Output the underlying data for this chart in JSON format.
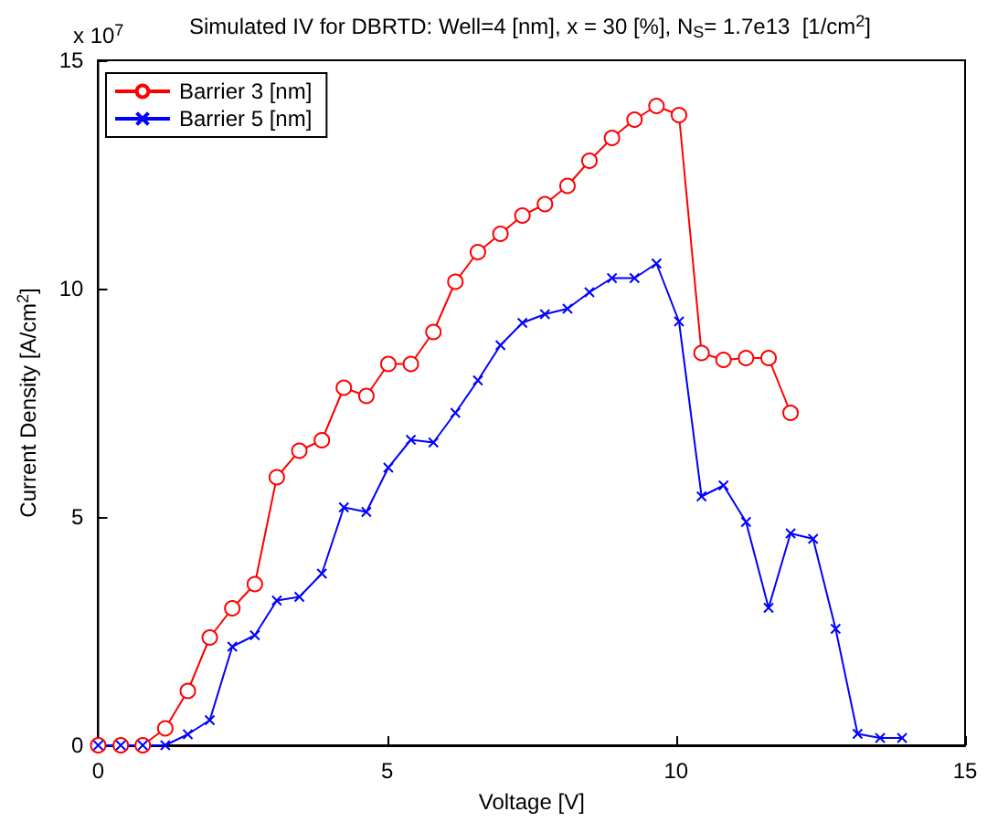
{
  "chart_data": {
    "type": "line",
    "title": "Simulated IV for DBRTD: Well=4 [nm], x = 30 [%], N$_{S}$= 1.7e13  [1/cm$^{2}$]",
    "xlabel": "Voltage [V]",
    "ylabel": "Current Density [A/cm$^{2}$]",
    "annotations": [
      "x 10$^{7}$"
    ],
    "series": [
      {
        "name": "Barrier 3 [nm]",
        "color": "#ff0000",
        "marker": "circle",
        "x": [
          0,
          0.39,
          0.77,
          1.16,
          1.55,
          1.93,
          2.32,
          2.71,
          3.09,
          3.48,
          3.87,
          4.25,
          4.64,
          5.02,
          5.41,
          5.8,
          6.18,
          6.57,
          6.96,
          7.34,
          7.73,
          8.12,
          8.5,
          8.89,
          9.28,
          9.66,
          10.05,
          10.44,
          10.82,
          11.21,
          11.6,
          11.98
        ],
        "values": [
          0,
          0,
          0,
          0.37,
          1.19,
          2.36,
          3.0,
          3.53,
          5.87,
          6.45,
          6.68,
          7.83,
          7.65,
          8.35,
          8.35,
          9.05,
          10.15,
          10.8,
          11.2,
          11.6,
          11.85,
          12.25,
          12.8,
          13.3,
          13.7,
          14.0,
          13.8,
          8.59,
          8.44,
          8.48,
          8.48,
          7.28
        ]
      },
      {
        "name": "Barrier 5 [nm]",
        "color": "#0000ff",
        "marker": "cross",
        "x": [
          0,
          0.39,
          0.77,
          1.16,
          1.55,
          1.93,
          2.32,
          2.71,
          3.09,
          3.48,
          3.87,
          4.25,
          4.64,
          5.02,
          5.41,
          5.8,
          6.18,
          6.57,
          6.96,
          7.34,
          7.73,
          8.12,
          8.5,
          8.89,
          9.28,
          9.66,
          10.05,
          10.44,
          10.82,
          11.21,
          11.6,
          11.98,
          12.37,
          12.76,
          13.14,
          13.53,
          13.91
        ],
        "values": [
          0,
          0,
          0,
          0,
          0.24,
          0.55,
          2.16,
          2.41,
          3.17,
          3.25,
          3.76,
          5.21,
          5.11,
          6.08,
          6.69,
          6.63,
          7.28,
          7.99,
          8.76,
          9.25,
          9.44,
          9.56,
          9.92,
          10.23,
          10.23,
          10.55,
          9.28,
          5.45,
          5.69,
          4.89,
          3.01,
          4.64,
          4.52,
          2.55,
          0.25,
          0.16,
          0.16
        ]
      }
    ],
    "xlim": [
      0,
      15
    ],
    "xticks": [
      0,
      5,
      10,
      15
    ],
    "ylim": [
      0,
      15
    ],
    "yticks": [
      0,
      5,
      10,
      15
    ],
    "grid": false,
    "legend": "top left",
    "line_style": "solid"
  }
}
